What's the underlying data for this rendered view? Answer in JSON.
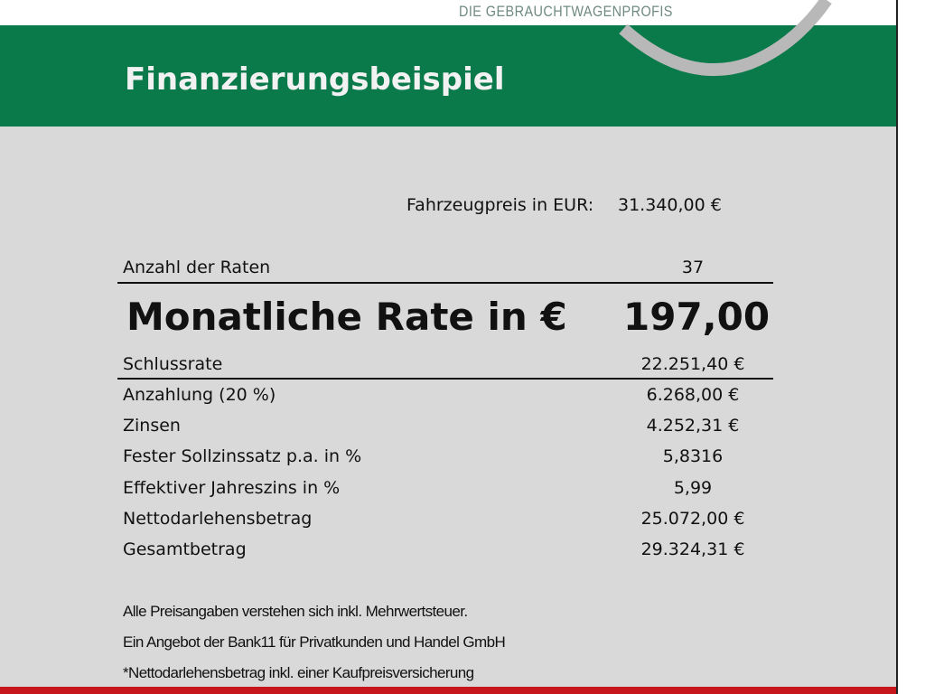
{
  "header": {
    "tagline": "DIE GEBRAUCHTWAGENPROFIS",
    "title": "Finanzierungsbeispiel",
    "colors": {
      "green": "#0a7a4a",
      "body": "#d9d9d9",
      "red": "#c8161d"
    }
  },
  "price": {
    "label": "Fahrzeugpreis in EUR:",
    "value": "31.340,00 €"
  },
  "rates": {
    "label": "Anzahl der Raten",
    "value": "37"
  },
  "monthly": {
    "label": "Monatliche Rate in €",
    "value": "197,00"
  },
  "rows": [
    {
      "label": "Schlussrate",
      "value": "22.251,40 €"
    },
    {
      "label": "Anzahlung (20 %)",
      "value": "6.268,00 €"
    },
    {
      "label": "Zinsen",
      "value": "4.252,31 €"
    },
    {
      "label": "Fester Sollzinssatz p.a. in %",
      "value": "5,8316"
    },
    {
      "label": "Effektiver Jahreszins in %",
      "value": "5,99"
    },
    {
      "label": "Nettodarlehensbetrag",
      "value": "25.072,00 €"
    },
    {
      "label": "Gesamtbetrag",
      "value": "29.324,31 €"
    }
  ],
  "notes": [
    "Alle Preisangaben verstehen sich inkl. Mehrwertsteuer.",
    "Ein Angebot der Bank11 für Privatkunden und Handel GmbH",
    "*Nettodarlehensbetrag inkl. einer Kaufpreisversicherung"
  ]
}
